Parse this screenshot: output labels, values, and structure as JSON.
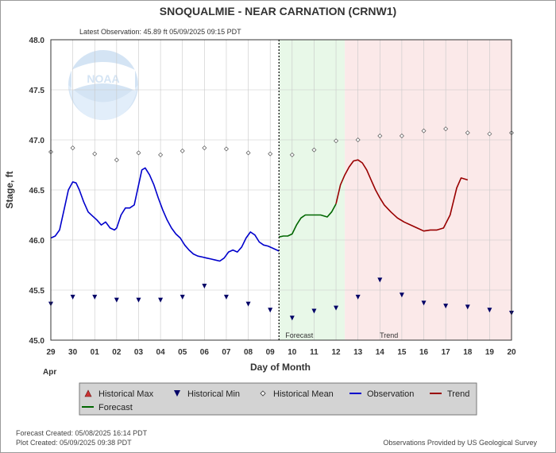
{
  "header": {
    "title": "SNOQUALMIE - NEAR CARNATION  (CRNW1)",
    "latest_observation": "Latest Observation: 45.89 ft 05/09/2025 09:15 PDT"
  },
  "footer": {
    "forecast_created": "Forecast Created: 05/08/2025 16:14 PDT",
    "plot_created": "Plot Created: 05/09/2025 09:38 PDT",
    "provided_by": "Observations Provided by US Geological Survey"
  },
  "logo_text": "NOAA",
  "chart_data": {
    "type": "line",
    "xlabel": "Day of Month",
    "ylabel": "Stage, ft",
    "month_label": "Apr",
    "ylim": [
      45.0,
      48.0
    ],
    "yticks": [
      "45.0",
      "45.5",
      "46.0",
      "46.5",
      "47.0",
      "47.5",
      "48.0"
    ],
    "x_tick_labels": [
      "29",
      "30",
      "01",
      "02",
      "03",
      "04",
      "05",
      "06",
      "07",
      "08",
      "09",
      "10",
      "11",
      "12",
      "13",
      "14",
      "15",
      "16",
      "17",
      "18",
      "19",
      "20"
    ],
    "x_range_days": [
      0,
      21
    ],
    "now_day": 10.4,
    "forecast_region": [
      10.4,
      13.4
    ],
    "trend_region": [
      13.4,
      21
    ],
    "region_labels": {
      "forecast": "Forecast",
      "trend": "Trend"
    },
    "colors": {
      "observation": "#0000cc",
      "forecast": "#006600",
      "trend": "#990000",
      "historical_max": "#cc3333",
      "historical_min": "#000066",
      "forecast_bg": "#e8f8e8",
      "trend_bg": "#fbe9e9"
    },
    "legend": {
      "placement": "bottom",
      "entries": [
        "Historical Max",
        "Historical Min",
        "Historical Mean",
        "Observation",
        "Trend",
        "Forecast"
      ]
    },
    "series": [
      {
        "name": "Observation",
        "points": [
          [
            0.0,
            46.02
          ],
          [
            0.2,
            46.04
          ],
          [
            0.4,
            46.1
          ],
          [
            0.6,
            46.3
          ],
          [
            0.8,
            46.5
          ],
          [
            1.0,
            46.58
          ],
          [
            1.15,
            46.57
          ],
          [
            1.3,
            46.5
          ],
          [
            1.5,
            46.38
          ],
          [
            1.7,
            46.28
          ],
          [
            1.9,
            46.24
          ],
          [
            2.1,
            46.2
          ],
          [
            2.3,
            46.15
          ],
          [
            2.5,
            46.18
          ],
          [
            2.7,
            46.12
          ],
          [
            2.9,
            46.1
          ],
          [
            3.0,
            46.12
          ],
          [
            3.2,
            46.25
          ],
          [
            3.4,
            46.32
          ],
          [
            3.6,
            46.32
          ],
          [
            3.8,
            46.35
          ],
          [
            4.0,
            46.55
          ],
          [
            4.15,
            46.7
          ],
          [
            4.3,
            46.72
          ],
          [
            4.5,
            46.65
          ],
          [
            4.7,
            46.55
          ],
          [
            4.9,
            46.42
          ],
          [
            5.1,
            46.3
          ],
          [
            5.3,
            46.2
          ],
          [
            5.5,
            46.12
          ],
          [
            5.7,
            46.06
          ],
          [
            5.9,
            46.02
          ],
          [
            6.1,
            45.95
          ],
          [
            6.3,
            45.9
          ],
          [
            6.5,
            45.86
          ],
          [
            6.7,
            45.84
          ],
          [
            6.9,
            45.83
          ],
          [
            7.1,
            45.82
          ],
          [
            7.3,
            45.81
          ],
          [
            7.5,
            45.8
          ],
          [
            7.7,
            45.79
          ],
          [
            7.9,
            45.82
          ],
          [
            8.1,
            45.88
          ],
          [
            8.3,
            45.9
          ],
          [
            8.5,
            45.88
          ],
          [
            8.7,
            45.93
          ],
          [
            8.9,
            46.02
          ],
          [
            9.1,
            46.08
          ],
          [
            9.3,
            46.05
          ],
          [
            9.5,
            45.98
          ],
          [
            9.7,
            45.95
          ],
          [
            9.9,
            45.94
          ],
          [
            10.1,
            45.92
          ],
          [
            10.4,
            45.89
          ]
        ]
      },
      {
        "name": "Forecast",
        "points": [
          [
            10.4,
            46.03
          ],
          [
            10.6,
            46.04
          ],
          [
            10.8,
            46.04
          ],
          [
            11.0,
            46.06
          ],
          [
            11.2,
            46.15
          ],
          [
            11.4,
            46.22
          ],
          [
            11.6,
            46.25
          ],
          [
            11.8,
            46.25
          ],
          [
            12.0,
            46.25
          ],
          [
            12.3,
            46.25
          ],
          [
            12.6,
            46.23
          ],
          [
            12.8,
            46.28
          ],
          [
            13.0,
            46.36
          ]
        ]
      },
      {
        "name": "Trend",
        "points": [
          [
            13.0,
            46.36
          ],
          [
            13.2,
            46.55
          ],
          [
            13.4,
            46.65
          ],
          [
            13.6,
            46.73
          ],
          [
            13.8,
            46.79
          ],
          [
            14.0,
            46.8
          ],
          [
            14.2,
            46.77
          ],
          [
            14.4,
            46.7
          ],
          [
            14.6,
            46.6
          ],
          [
            14.8,
            46.5
          ],
          [
            15.0,
            46.42
          ],
          [
            15.2,
            46.35
          ],
          [
            15.5,
            46.28
          ],
          [
            15.8,
            46.22
          ],
          [
            16.1,
            46.18
          ],
          [
            16.4,
            46.15
          ],
          [
            16.7,
            46.12
          ],
          [
            17.0,
            46.09
          ],
          [
            17.3,
            46.1
          ],
          [
            17.6,
            46.1
          ],
          [
            17.9,
            46.12
          ],
          [
            18.2,
            46.25
          ],
          [
            18.5,
            46.52
          ],
          [
            18.7,
            46.62
          ],
          [
            19.0,
            46.6
          ]
        ]
      }
    ],
    "historical_mean": [
      [
        0,
        46.88
      ],
      [
        1,
        46.92
      ],
      [
        2,
        46.86
      ],
      [
        3,
        46.8
      ],
      [
        4,
        46.87
      ],
      [
        5,
        46.85
      ],
      [
        6,
        46.89
      ],
      [
        7,
        46.92
      ],
      [
        8,
        46.91
      ],
      [
        9,
        46.87
      ],
      [
        10,
        46.86
      ],
      [
        11,
        46.85
      ],
      [
        12,
        46.9
      ],
      [
        13,
        46.99
      ],
      [
        14,
        47.0
      ],
      [
        15,
        47.04
      ],
      [
        16,
        47.04
      ],
      [
        17,
        47.09
      ],
      [
        18,
        47.11
      ],
      [
        19,
        47.07
      ],
      [
        20,
        47.06
      ],
      [
        21,
        47.07
      ]
    ],
    "historical_min": [
      [
        0,
        45.36
      ],
      [
        1,
        45.43
      ],
      [
        2,
        45.43
      ],
      [
        3,
        45.4
      ],
      [
        4,
        45.4
      ],
      [
        5,
        45.4
      ],
      [
        6,
        45.43
      ],
      [
        7,
        45.54
      ],
      [
        8,
        45.43
      ],
      [
        9,
        45.36
      ],
      [
        10,
        45.3
      ],
      [
        11,
        45.22
      ],
      [
        12,
        45.29
      ],
      [
        13,
        45.32
      ],
      [
        14,
        45.43
      ],
      [
        15,
        45.6
      ],
      [
        16,
        45.45
      ],
      [
        17,
        45.37
      ],
      [
        18,
        45.34
      ],
      [
        19,
        45.33
      ],
      [
        20,
        45.3
      ],
      [
        21,
        45.27
      ]
    ]
  }
}
